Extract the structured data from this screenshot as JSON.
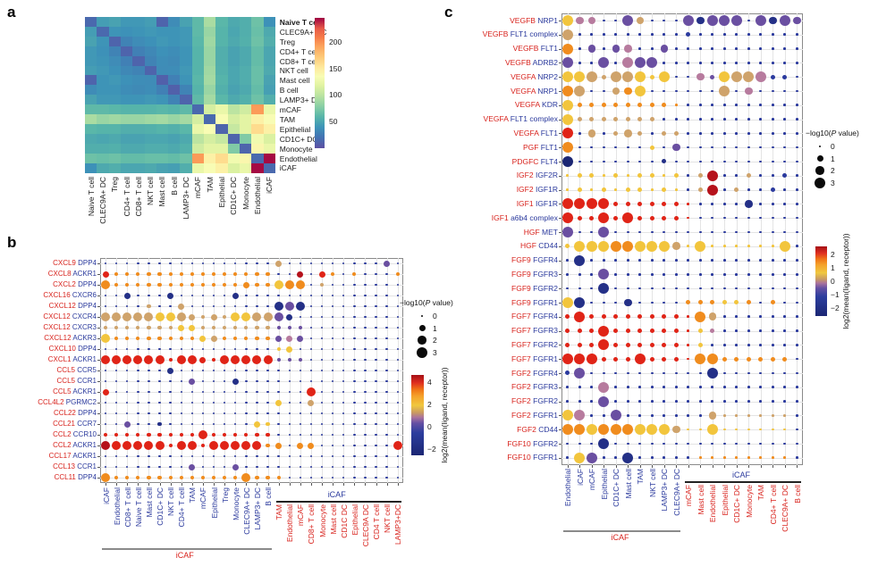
{
  "figure": {
    "panel_a_letter": "a",
    "panel_b_letter": "b",
    "panel_c_letter": "c"
  },
  "accents": {
    "ligand_red": "#d8231d",
    "receptor_blue": "#2b3a9d"
  },
  "legend_size": {
    "t1": "−log10(",
    "t2": "P",
    "t3": " value)",
    "labels": [
      "0",
      "1",
      "2",
      "3"
    ]
  },
  "legend_color_label": "log2(mean(ligand, receptor))",
  "dot_encoding": {
    "size_classes_neglog10p": [
      0,
      1,
      2,
      3
    ],
    "colors": {
      "n": "#2b3a9e",
      "b": "#243087",
      "k": "#1b2673",
      "p": "#6a4fa1",
      "m": "#b77b9e",
      "t": "#cfa36b",
      "y": "#f2c53d",
      "o": "#f08c1e",
      "r": "#e02417",
      "d": "#b5121b"
    }
  },
  "chart_data": [
    {
      "type": "heatmap",
      "panel": "a",
      "labels": [
        "Naive T cell",
        "CLEC9A+ DC",
        "Treg",
        "CD4+ T cell",
        "CD8+ T cell",
        "NKT cell",
        "Mast cell",
        "B cell",
        "LAMP3+ DC",
        "mCAF",
        "TAM",
        "Epithelial",
        "CD1C+ DC",
        "Monocyte",
        "Endothelial",
        "iCAF"
      ],
      "bold_label_index": 0,
      "colorbar_ticks": [
        50,
        100,
        150,
        200
      ],
      "value_range": [
        0,
        245
      ],
      "matrix": [
        [
          15,
          45,
          48,
          42,
          42,
          45,
          12,
          35,
          48,
          62,
          92,
          60,
          52,
          55,
          68,
          38
        ],
        [
          45,
          15,
          40,
          38,
          40,
          42,
          40,
          40,
          42,
          62,
          85,
          58,
          50,
          55,
          66,
          52
        ],
        [
          48,
          40,
          12,
          30,
          35,
          38,
          42,
          40,
          42,
          60,
          88,
          58,
          52,
          56,
          68,
          55
        ],
        [
          42,
          38,
          30,
          12,
          28,
          33,
          38,
          36,
          40,
          58,
          85,
          55,
          48,
          52,
          64,
          50
        ],
        [
          42,
          40,
          35,
          28,
          12,
          30,
          36,
          34,
          40,
          58,
          85,
          55,
          48,
          52,
          64,
          50
        ],
        [
          45,
          42,
          38,
          33,
          30,
          12,
          35,
          36,
          42,
          58,
          88,
          56,
          50,
          54,
          66,
          52
        ],
        [
          12,
          40,
          42,
          38,
          36,
          35,
          10,
          28,
          40,
          60,
          90,
          58,
          50,
          54,
          66,
          48
        ],
        [
          35,
          40,
          40,
          36,
          34,
          36,
          28,
          10,
          30,
          58,
          85,
          56,
          48,
          52,
          64,
          46
        ],
        [
          48,
          42,
          42,
          40,
          40,
          42,
          40,
          30,
          12,
          62,
          90,
          60,
          52,
          56,
          68,
          55
        ],
        [
          62,
          62,
          60,
          58,
          58,
          58,
          60,
          58,
          62,
          15,
          112,
          125,
          100,
          110,
          195,
          125
        ],
        [
          92,
          85,
          88,
          85,
          85,
          88,
          90,
          85,
          90,
          112,
          15,
          135,
          112,
          120,
          145,
          135
        ],
        [
          60,
          58,
          58,
          55,
          55,
          56,
          58,
          56,
          60,
          125,
          135,
          12,
          105,
          120,
          160,
          145
        ],
        [
          52,
          50,
          52,
          48,
          48,
          50,
          50,
          48,
          52,
          100,
          112,
          105,
          12,
          75,
          130,
          115
        ],
        [
          55,
          55,
          56,
          52,
          52,
          54,
          54,
          52,
          56,
          110,
          120,
          120,
          75,
          12,
          140,
          125
        ],
        [
          68,
          66,
          68,
          64,
          64,
          66,
          66,
          64,
          68,
          195,
          145,
          160,
          130,
          140,
          15,
          243
        ],
        [
          38,
          52,
          55,
          50,
          50,
          52,
          48,
          46,
          55,
          125,
          135,
          145,
          115,
          125,
          243,
          15
        ]
      ]
    },
    {
      "type": "scatter",
      "panel": "b",
      "rows": [
        {
          "l": "CXCL9",
          "r": "DPP4"
        },
        {
          "l": "CXCL8",
          "r": "ACKR1"
        },
        {
          "l": "CXCL2",
          "r": "DPP4"
        },
        {
          "l": "CXCL16",
          "r": "CXCR6"
        },
        {
          "l": "CXCL12",
          "r": "DPP4"
        },
        {
          "l": "CXCL12",
          "r": "CXCR4"
        },
        {
          "l": "CXCL12",
          "r": "CXCR3"
        },
        {
          "l": "CXCL12",
          "r": "ACKR3"
        },
        {
          "l": "CXCL10",
          "r": "DPP4"
        },
        {
          "l": "CXCL1",
          "r": "ACKR1"
        },
        {
          "l": "CCL5",
          "r": "CCR5"
        },
        {
          "l": "CCL5",
          "r": "CCR1"
        },
        {
          "l": "CCL5",
          "r": "ACKR1"
        },
        {
          "l": "CCL4L2",
          "r": "PGRMC2"
        },
        {
          "l": "CCL22",
          "r": "DPP4"
        },
        {
          "l": "CCL21",
          "r": "CCR7"
        },
        {
          "l": "CCL2",
          "r": "CCR10"
        },
        {
          "l": "CCL2",
          "r": "ACKR1"
        },
        {
          "l": "CCL17",
          "r": "ACKR1"
        },
        {
          "l": "CCL13",
          "r": "CCR1"
        },
        {
          "l": "CCL11",
          "r": "DPP4"
        }
      ],
      "cols_group1": [
        "iCAF",
        "Endothelial",
        "CD8+ T cell",
        "Naive T cell",
        "Mast cell",
        "CD1C+ DC",
        "NKT cell",
        "CD4+ T cell",
        "TAM",
        "mCAF",
        "Epithelial",
        "Treg",
        "Monocyte",
        "CLEC9A+ DC",
        "LAMP3+ DC",
        "B cell"
      ],
      "cols_group2": [
        "TAM",
        "Endothelial",
        "mCAF",
        "CD8+ T cell",
        "Monocyte",
        "Mast cell",
        "CD1C DC",
        "Epithelial",
        "CLEC9A DC",
        "CD4 T cell",
        "NKT cell",
        "LAMP3+DC"
      ],
      "group1_label": "iCAF",
      "group2_label": "iCAF",
      "colorbar_ticks": [
        4,
        2,
        0,
        -2
      ],
      "color_range": [
        -2.6,
        4.6
      ],
      "dots": [
        "0n 0n 0n 0n 0n 0n 0n 0n 0n 0n 0n 0n 0n 0n 0n 0n 2t 0n 0n 0n 0n 0n 0n 0n 0n 0n 2p 0n",
        "2r 1o 1o 1o 1o 1o 1o 1o 1o 1o 1o 1o 1o 1o 1o 1o 0n 0n 2d 0n 2r 1o 0n 1o 0n 0n 0n 1o",
        "3o 1o 1o 1o 1o 1o 1o 1o 1o 1o 1o 1o 1o 2o 1o 1o 3y 3o 3o 0n 1t 0n 0n 0n 0n 0n 0n 0n",
        "0n 0n 2b 0n 0n 0n 2b 0n 0n 0n 0n 0n 2b 0n 0n 0n 0n 0n 0n 0n 0n 0n 0n 0n 0n 0n 0n 0n",
        "0n 0n 0n 0n 1t 0n 0n 2t 0n 0n 0n 0n 0n 0n 0n 0n 3b 3p 3b 0n 0n 0n 0n 0n 0n 0n 0n 0n",
        "3t 3t 3t 3t 3t 3y 3y 3t 2t 1t 2t 1t 3y 3y 3t 3t 3p 2b 0n 0n 0n 0n 0n 0n 0n 0n 0n 0n",
        "1t 1t 1t 1t 1t 1t 1t 2y 2y 1t 1t 1t 1t 1t 1t 1t 1p 1p 1p 0n 0n 0n 0n 0n 0n 0n 0n 0n",
        "3y 1o 1o 1o 1o 1o 1o 1o 1o 2y 2t 1o 1o 1o 1o 1o 2p 2m 2p 0n 0n 0n 0n 0n 0n 0n 0n 0n",
        "0n 0n 0n 0n 0n 0n 0n 0n 0n 0n 0n 0n 0n 0n 0n 0n 1y 2y 0n 0n 0n 0n 0n 0n 0n 0n 0n 0n",
        "3r 3r 3r 3r 3r 3r 1r 3r 3r 2r 1r 3r 3r 3r 3r 3r 1p 1p 1p 0n 0n 0n 0n 0n 0n 0n 0n 0n",
        "0n 0n 0n 0n 0n 0n 2b 0n 0n 0n 0n 0n 0n 0n 0n 0n 0n 0n 0n 0n 0n 0n 0n 0n 0n 0n 0n 0n",
        "0n 0n 0n 0n 0n 0n 0n 0n 2p 0n 0n 0n 2b 0n 0n 0n 0n 0n 0n 0n 0n 0n 0n 0n 0n 0n 0n 0n",
        "2r 0n 0n 0n 0n 0n 0n 0n 0n 0n 0n 0n 0n 0n 0n 0n 0n 0n 0n 3r 0n 0n 0n 0n 0n 0n 0n 0n",
        "0n 0n 0n 0n 0n 0n 0n 0n 0n 0n 0n 0n 0n 0n 0n 0n 2y 0n 0n 2t 0n 0n 0n 0n 0n 0n 0n 0n",
        "0n 0n 0n 0n 0n 0n 0n 0n 0n 0n 0n 0n 0n 0n 0n 0n 0n 0n 0n 0n 0n 0n 0n 0n 0n 0n 0n 0n",
        "0n 0n 2p 0n 0n 1b 0n 0n 0n 0n 0n 0n 0n 0n 2y 1y 0n 0n 0n 0n 0n 0n 0n 0n 0n 0n 0n 0n",
        "1r 1r 1r 1r 1r 1r 1r 1r 1r 3r 1r 1r 1r 1r 1r 1r 0n 0n 0n 0n 0n 0n 0n 0n 0n 0n 0n 0n",
        "3d 3r 3r 3r 3r 3r 1r 3r 3r 1r 3r 3r 3r 3r 3r 1o 2o 0n 2o 2o 0n 0n 0n 0n 0n 0n 0n 3r",
        "0n 0n 0n 0n 0n 0n 0n 0n 0n 0n 0n 0n 0n 0n 0n 0n 0n 0n 0n 0n 0n 0n 0n 0n 0n 0n 0n 0n",
        "0n 0n 0n 0n 0n 0n 0n 0n 2p 0n 0n 0n 2p 0n 0n 0n 0n 0n 0n 0n 0n 0n 0n 0n 0n 0n 0n 0n",
        "3o 1o 1o 1o 1o 1o 1o 1o 1o 1o 1o 1o 1o 3o 1o 1o 1o 0n 0n 0n 0n 0n 0n 0n 0n 0n 0n 0n"
      ]
    },
    {
      "type": "scatter",
      "panel": "c",
      "rows": [
        {
          "l": "VEGFB",
          "r": "NRP1"
        },
        {
          "l": "VEGFB",
          "r": "FLT1 complex"
        },
        {
          "l": "VEGFB",
          "r": "FLT1"
        },
        {
          "l": "VEGFB",
          "r": "ADRB2"
        },
        {
          "l": "VEGFA",
          "r": "NRP2"
        },
        {
          "l": "VEGFA",
          "r": "NRP1"
        },
        {
          "l": "VEGFA",
          "r": "KDR"
        },
        {
          "l": "VEGFA",
          "r": "FLT1 complex"
        },
        {
          "l": "VEGFA",
          "r": "FLT1"
        },
        {
          "l": "PGF",
          "r": "FLT1"
        },
        {
          "l": "PDGFC",
          "r": "FLT4"
        },
        {
          "l": "IGF2",
          "r": "IGF2R"
        },
        {
          "l": "IGF2",
          "r": "IGF1R"
        },
        {
          "l": "IGF1",
          "r": "IGF1R"
        },
        {
          "l": "IGF1",
          "r": "a6b4 complex"
        },
        {
          "l": "HGF",
          "r": "MET"
        },
        {
          "l": "HGF",
          "r": "CD44"
        },
        {
          "l": "FGF9",
          "r": "FGFR4"
        },
        {
          "l": "FGF9",
          "r": "FGFR3"
        },
        {
          "l": "FGF9",
          "r": "FGFR2"
        },
        {
          "l": "FGF9",
          "r": "FGFR1"
        },
        {
          "l": "FGF7",
          "r": "FGFR4"
        },
        {
          "l": "FGF7",
          "r": "FGFR3"
        },
        {
          "l": "FGF7",
          "r": "FGFR2"
        },
        {
          "l": "FGF7",
          "r": "FGFR1"
        },
        {
          "l": "FGF2",
          "r": "FGFR4"
        },
        {
          "l": "FGF2",
          "r": "FGFR3"
        },
        {
          "l": "FGF2",
          "r": "FGFR2"
        },
        {
          "l": "FGF2",
          "r": "FGFR1"
        },
        {
          "l": "FGF2",
          "r": "CD44"
        },
        {
          "l": "FGF10",
          "r": "FGFR2"
        },
        {
          "l": "FGF10",
          "r": "FGFR1"
        }
      ],
      "cols_group1": [
        "Endothelial",
        "iCAF",
        "mCAF",
        "Epithelial",
        "CD1C+ DC",
        "Mast cell",
        "TAM",
        "NKT cell",
        "LAMP3+ DC",
        "CLEC9A+ DC"
      ],
      "cols_group2": [
        "mCAF",
        "Mast cell",
        "Endothelial",
        "Epithelial",
        "CD1C+ DC",
        "Monocyte",
        "TAM",
        "CD4+ T cell",
        "CLEC9A+ DC",
        "B cell"
      ],
      "group1_label": "iCAF",
      "group2_label": "iCAF",
      "colorbar_ticks": [
        2,
        1,
        0,
        -1,
        -2
      ],
      "color_range": [
        -2.6,
        2.6
      ],
      "dots": [
        "3y 2m 2m 0n 0n 3p 2t 0n 0n 0n 3p 2b 3p 3p 3p 0n 3p 2b 3p 2p",
        "3t 0n 0n 0n 0n 0n 0n 0n 0n 0n 1n 0n 0n 0n 0n 0n 0n 0n 0n 0n",
        "3o 0n 2p 0n 2p 2m 0n 0n 2p 0n 0n 0n 0n 0n 0n 0n 0n 0n 0n 0n",
        "3p 0n 0n 3p 0n 3m 3p 3p 0n 0n 0n 0n 0n 0n 0n 0n 0n 0n 0n 0n",
        "3y 3y 3t 1t 3t 3t 3y 1y 3y 0n 0n 2m 1p 3y 3t 3t 3m 1n 1n 0n",
        "3o 3t 0n 0n 2t 2o 3y 0n 0n 0n 0n 0n 0n 3t 0n 2m 0n 0n 0n 0n",
        "3y 1o 1o 1o 1o 1o 1o 1o 1o 0o 0n 0n 0n 0n 0n 0n 0n 0n 0n 0n",
        "3y 1t 1t 1t 1t 1t 1t 1t 0n 0n 0n 0n 0n 0n 0n 0n 0n 0n 0n 0n",
        "3r 0n 2t 0n 1t 2t 1t 0n 1t 1t 0n 0n 0n 0n 0n 0n 0n 0n 0n 0n",
        "3o 0n 0n 0n 0n 0n 0n 1y 0n 2p 0n 0n 0n 0n 0n 0n 0n 0n 0n 0n",
        "3k 0n 0n 0n 0n 0n 0n 0n 1b 0n 0n 0n 0n 0n 0n 0n 0n 0n 0n 0n",
        "0y 1y 1y 0y 1y 0y 1y 1y 0y 1y 0n 1t 3d 0n 0n 1t 0n 0n 1n 0n",
        "0y 1y 0y 1y 0y 1y 1y 0y 1y 0y 0n 1t 3d 0n 1t 0n 0n 1n 0n 0n",
        "3r 3r 3r 3r 1r 1r 1r 1r 1r 1r 0r 0n 0n 0n 0n 2b 0n 0n 0n 0n",
        "3r 1r 1r 3r 1r 3r 1r 1r 1r 1r 0r 0n 0n 0n 0n 0n 0n 0n 0n 0n",
        "3p 0n 0n 3p 0n 0n 0n 0n 0n 0n 0n 0n 0n 0n 0n 0n 0n 0n 0n 0n",
        "1y 3y 3y 3y 3o 3o 3y 3y 3y 2t 0y 3y 0y 0y 0y 0y 0y 0y 3y 0n",
        "0n 3b 0n 0n 0n 0n 0n 0n 0n 0n 0n 0n 0n 0n 0n 0n 0n 0n 0n 0n",
        "0n 0n 0n 3p 0n 0n 0n 0n 0n 0n 0n 0n 0n 0n 0n 0n 0n 0n 0n 0n",
        "0n 0n 0n 3b 0n 0n 0n 0n 0n 0n 0n 0n 0n 0n 0n 0n 0n 0n 0n 0n",
        "3y 3b 0n 0n 0n 2b 0n 0n 0n 0n 1o 1o 1o 1y 1y 1o 0n 1o 0n 0n",
        "1r 3r 1r 1r 1r 1r 1r 1r 1r 1r 0r 3o 2t 0n 0n 0n 0n 0n 0n 0n",
        "1r 1r 1r 3r 1r 1r 1r 1r 1r 1r 0r 1y 1m 0n 0n 0n 0n 0n 0n 0n",
        "1r 1r 1r 3r 1r 1r 1r 1r 1r 1r 0r 1y 0n 0n 0n 0n 0n 0n 0n 0n",
        "3r 3r 3r 1r 1r 1r 3r 1r 1r 1r 0r 3o 3o 1o 1o 1o 1o 1o 1o 0n",
        "1n 3p 0n 0n 0n 0n 0n 0n 0n 0n 0n 0n 3b 0n 0n 0n 0n 0n 0n 0n",
        "0n 0n 0n 3m 0n 0n 0n 0n 0n 0n 0n 0n 0n 0n 0n 0n 0n 0n 0n 0n",
        "0n 0n 0n 3p 0n 0n 0n 0n 0n 0n 0n 0n 0n 0n 0n 0n 0n 0n 0n 0n",
        "3y 3m 0n 0n 3p 0n 0n 0n 0n 0n 0n 0n 2t 0t 0t 0t 0t 0t 0t 0n",
        "3o 3o 3y 3o 3o 3o 3y 3y 3y 2t 0y 0y 3y 0y 0y 0y 0y 0y 0y 0n",
        "0n 0n 0n 3b 0n 0n 0n 0n 0n 0n 0n 0n 0n 0n 0n 0n 0n 0n 0n 0n",
        "0n 3y 3p 0n 0n 3b 0n 0n 0n 0n 0n 0o 0o 0o 0o 0o 0o 0o 0o 0n"
      ]
    }
  ]
}
